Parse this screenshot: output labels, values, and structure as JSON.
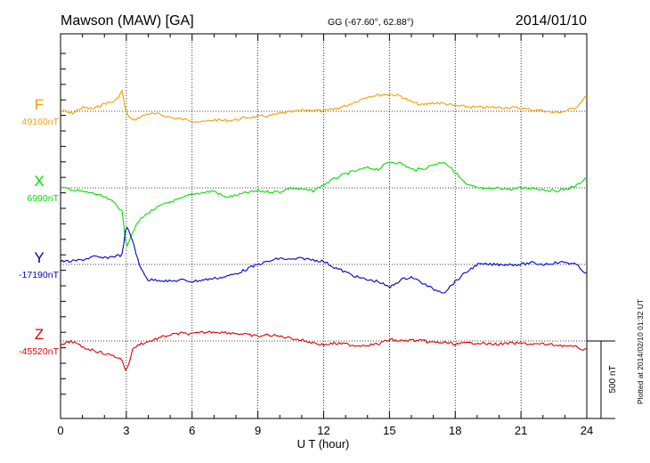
{
  "header": {
    "station": "Mawson (MAW)  [GA]",
    "coords": "GG (-67.60°,  62.88°)",
    "date": "2014/01/10"
  },
  "footer": {
    "plotted": "Plotted at 2014/02/10 01:32 UT"
  },
  "chart_data": {
    "type": "line",
    "xlabel": "U T (hour)",
    "xlim": [
      0,
      24
    ],
    "x_ticks": [
      "0",
      "3",
      "6",
      "9",
      "12",
      "15",
      "18",
      "21",
      "24"
    ],
    "scale_bar_label": "500 nT",
    "colors": {
      "F": "#f0a000",
      "X": "#00e000",
      "Y": "#0000d0",
      "Z": "#e00000"
    },
    "x": [
      0,
      0.5,
      1,
      1.5,
      2,
      2.5,
      2.8,
      3,
      3.3,
      3.6,
      4,
      4.5,
      5,
      5.5,
      6,
      6.5,
      7,
      7.5,
      8,
      8.5,
      9,
      9.5,
      10,
      10.5,
      11,
      11.5,
      12,
      12.5,
      13,
      13.5,
      14,
      14.5,
      15,
      15.5,
      16,
      16.5,
      17,
      17.5,
      18,
      18.5,
      19,
      19.5,
      20,
      20.5,
      21,
      21.5,
      22,
      22.5,
      23,
      23.5,
      24
    ],
    "series": [
      {
        "name": "F",
        "baseline_label": "49160nT",
        "values": [
          6,
          -15,
          25,
          15,
          50,
          65,
          130,
          -15,
          -60,
          -40,
          -15,
          -20,
          -40,
          -50,
          -60,
          -70,
          -55,
          -60,
          -55,
          -40,
          -35,
          -30,
          -15,
          -5,
          5,
          10,
          0,
          15,
          35,
          65,
          95,
          105,
          110,
          100,
          60,
          40,
          55,
          50,
          35,
          30,
          25,
          25,
          25,
          25,
          20,
          10,
          5,
          -10,
          0,
          25,
          100
        ]
      },
      {
        "name": "X",
        "baseline_label": "6990nT",
        "values": [
          0,
          -10,
          -25,
          -35,
          -60,
          -100,
          -150,
          -380,
          -280,
          -210,
          -160,
          -120,
          -90,
          -70,
          -40,
          -30,
          -20,
          -60,
          -50,
          -30,
          -20,
          -25,
          -25,
          0,
          -10,
          -20,
          20,
          60,
          90,
          110,
          130,
          120,
          170,
          160,
          120,
          120,
          150,
          170,
          100,
          20,
          0,
          -10,
          0,
          -10,
          0,
          0,
          -10,
          -20,
          -10,
          10,
          70
        ]
      },
      {
        "name": "Y",
        "baseline_label": "-17190nT",
        "values": [
          20,
          20,
          30,
          50,
          40,
          55,
          60,
          250,
          150,
          -10,
          -100,
          -100,
          -110,
          -100,
          -110,
          -100,
          -90,
          -80,
          -60,
          -30,
          0,
          20,
          40,
          30,
          40,
          30,
          20,
          -20,
          -50,
          -80,
          -100,
          -110,
          -150,
          -100,
          -80,
          -120,
          -160,
          -180,
          -110,
          -50,
          0,
          0,
          0,
          0,
          0,
          10,
          0,
          10,
          15,
          0,
          -60
        ]
      },
      {
        "name": "Z",
        "baseline_label": "-45520nT",
        "values": [
          -30,
          0,
          -40,
          -60,
          -80,
          -100,
          -120,
          -200,
          -50,
          -20,
          -5,
          20,
          40,
          50,
          45,
          55,
          60,
          55,
          50,
          40,
          30,
          40,
          30,
          20,
          5,
          -10,
          -25,
          -15,
          -20,
          -30,
          -25,
          -20,
          10,
          0,
          5,
          0,
          -10,
          -10,
          -20,
          -15,
          -10,
          -20,
          -20,
          -15,
          -15,
          -20,
          -20,
          -25,
          -30,
          -40,
          -60
        ]
      }
    ]
  }
}
